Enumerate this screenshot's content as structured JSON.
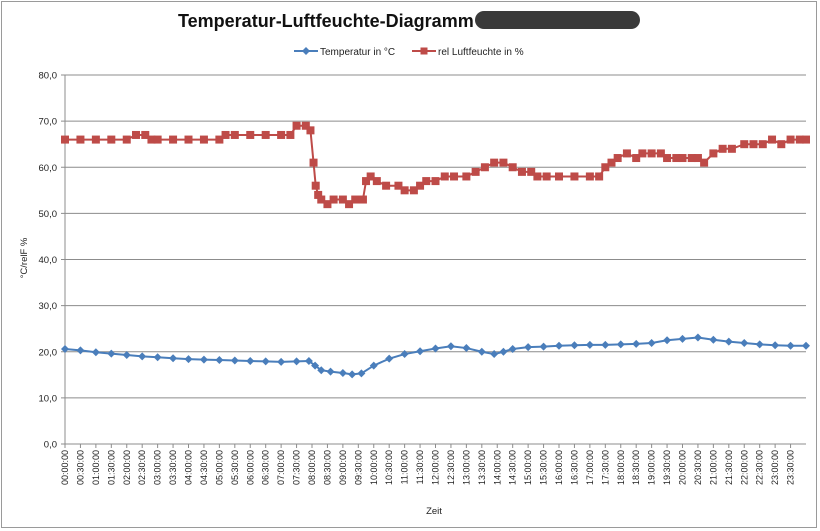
{
  "chart_data": {
    "type": "line",
    "title": "Temperatur-Luftfeuchte-Diagramm",
    "xlabel": "Zeit",
    "ylabel": "°C/relF %",
    "ylim": [
      0,
      80
    ],
    "yticks": [
      "0,0",
      "10,0",
      "20,0",
      "30,0",
      "40,0",
      "50,0",
      "60,0",
      "70,0",
      "80,0"
    ],
    "grid": true,
    "legend_position": "top",
    "categories": [
      "00:00:00",
      "00:30:00",
      "01:00:00",
      "01:30:00",
      "02:00:00",
      "02:30:00",
      "03:00:00",
      "03:30:00",
      "04:00:00",
      "04:30:00",
      "05:00:00",
      "05:30:00",
      "06:00:00",
      "06:30:00",
      "07:00:00",
      "07:30:00",
      "08:00:00",
      "08:30:00",
      "09:00:00",
      "09:30:00",
      "10:00:00",
      "10:30:00",
      "11:00:00",
      "11:30:00",
      "12:00:00",
      "12:30:00",
      "13:00:00",
      "13:30:00",
      "14:00:00",
      "14:30:00",
      "15:00:00",
      "15:30:00",
      "16:00:00",
      "16:30:00",
      "17:00:00",
      "17:30:00",
      "18:00:00",
      "18:30:00",
      "19:00:00",
      "19:30:00",
      "20:00:00",
      "20:30:00",
      "21:00:00",
      "21:30:00",
      "22:00:00",
      "22:30:00",
      "23:00:00",
      "23:30:00"
    ],
    "series": [
      {
        "name": "Temperatur in °C",
        "color": "#4a7ebb",
        "marker": "diamond",
        "points": [
          [
            0,
            20.6
          ],
          [
            0.5,
            20.3
          ],
          [
            1,
            19.9
          ],
          [
            1.5,
            19.6
          ],
          [
            2,
            19.3
          ],
          [
            2.5,
            19.0
          ],
          [
            3,
            18.8
          ],
          [
            3.5,
            18.6
          ],
          [
            4,
            18.4
          ],
          [
            4.5,
            18.3
          ],
          [
            5,
            18.2
          ],
          [
            5.5,
            18.1
          ],
          [
            6,
            18.0
          ],
          [
            6.5,
            17.9
          ],
          [
            7,
            17.8
          ],
          [
            7.5,
            17.9
          ],
          [
            7.9,
            18.0
          ],
          [
            8.1,
            17.0
          ],
          [
            8.3,
            16.0
          ],
          [
            8.6,
            15.7
          ],
          [
            9,
            15.4
          ],
          [
            9.3,
            15.1
          ],
          [
            9.6,
            15.3
          ],
          [
            10,
            17.0
          ],
          [
            10.5,
            18.5
          ],
          [
            11,
            19.5
          ],
          [
            11.5,
            20.1
          ],
          [
            12,
            20.7
          ],
          [
            12.5,
            21.2
          ],
          [
            13,
            20.8
          ],
          [
            13.5,
            20.0
          ],
          [
            13.9,
            19.5
          ],
          [
            14.2,
            20.0
          ],
          [
            14.5,
            20.6
          ],
          [
            15,
            21.0
          ],
          [
            15.5,
            21.1
          ],
          [
            16,
            21.3
          ],
          [
            16.5,
            21.4
          ],
          [
            17,
            21.5
          ],
          [
            17.5,
            21.5
          ],
          [
            18,
            21.6
          ],
          [
            18.5,
            21.7
          ],
          [
            19,
            21.9
          ],
          [
            19.5,
            22.5
          ],
          [
            20,
            22.8
          ],
          [
            20.5,
            23.1
          ],
          [
            21,
            22.6
          ],
          [
            21.5,
            22.2
          ],
          [
            22,
            21.9
          ],
          [
            22.5,
            21.6
          ],
          [
            23,
            21.4
          ],
          [
            23.5,
            21.3
          ],
          [
            24,
            21.3
          ]
        ]
      },
      {
        "name": "rel Luftfeuchte in %",
        "color": "#be4b48",
        "marker": "square",
        "points": [
          [
            0,
            66
          ],
          [
            0.5,
            66
          ],
          [
            1,
            66
          ],
          [
            1.5,
            66
          ],
          [
            2,
            66
          ],
          [
            2.3,
            67
          ],
          [
            2.6,
            67
          ],
          [
            2.8,
            66
          ],
          [
            3,
            66
          ],
          [
            3.5,
            66
          ],
          [
            4,
            66
          ],
          [
            4.5,
            66
          ],
          [
            5,
            66
          ],
          [
            5.2,
            67
          ],
          [
            5.5,
            67
          ],
          [
            6,
            67
          ],
          [
            6.5,
            67
          ],
          [
            7,
            67
          ],
          [
            7.3,
            67
          ],
          [
            7.5,
            69
          ],
          [
            7.8,
            69
          ],
          [
            7.95,
            68
          ],
          [
            8.05,
            61
          ],
          [
            8.12,
            56
          ],
          [
            8.2,
            54
          ],
          [
            8.3,
            53
          ],
          [
            8.5,
            52
          ],
          [
            8.7,
            53
          ],
          [
            9,
            53
          ],
          [
            9.2,
            52
          ],
          [
            9.4,
            53
          ],
          [
            9.65,
            53
          ],
          [
            9.75,
            57
          ],
          [
            9.9,
            58
          ],
          [
            10.1,
            57
          ],
          [
            10.4,
            56
          ],
          [
            10.8,
            56
          ],
          [
            11,
            55
          ],
          [
            11.3,
            55
          ],
          [
            11.5,
            56
          ],
          [
            11.7,
            57
          ],
          [
            12,
            57
          ],
          [
            12.3,
            58
          ],
          [
            12.6,
            58
          ],
          [
            13,
            58
          ],
          [
            13.3,
            59
          ],
          [
            13.6,
            60
          ],
          [
            13.9,
            61
          ],
          [
            14.2,
            61
          ],
          [
            14.5,
            60
          ],
          [
            14.8,
            59
          ],
          [
            15.1,
            59
          ],
          [
            15.3,
            58
          ],
          [
            15.6,
            58
          ],
          [
            16,
            58
          ],
          [
            16.5,
            58
          ],
          [
            17,
            58
          ],
          [
            17.3,
            58
          ],
          [
            17.5,
            60
          ],
          [
            17.7,
            61
          ],
          [
            17.9,
            62
          ],
          [
            18.2,
            63
          ],
          [
            18.5,
            62
          ],
          [
            18.7,
            63
          ],
          [
            19,
            63
          ],
          [
            19.3,
            63
          ],
          [
            19.5,
            62
          ],
          [
            19.8,
            62
          ],
          [
            20,
            62
          ],
          [
            20.3,
            62
          ],
          [
            20.5,
            62
          ],
          [
            20.7,
            61
          ],
          [
            21,
            63
          ],
          [
            21.3,
            64
          ],
          [
            21.6,
            64
          ],
          [
            22,
            65
          ],
          [
            22.3,
            65
          ],
          [
            22.6,
            65
          ],
          [
            22.9,
            66
          ],
          [
            23.2,
            65
          ],
          [
            23.5,
            66
          ],
          [
            23.8,
            66
          ],
          [
            24,
            66
          ]
        ]
      }
    ]
  }
}
